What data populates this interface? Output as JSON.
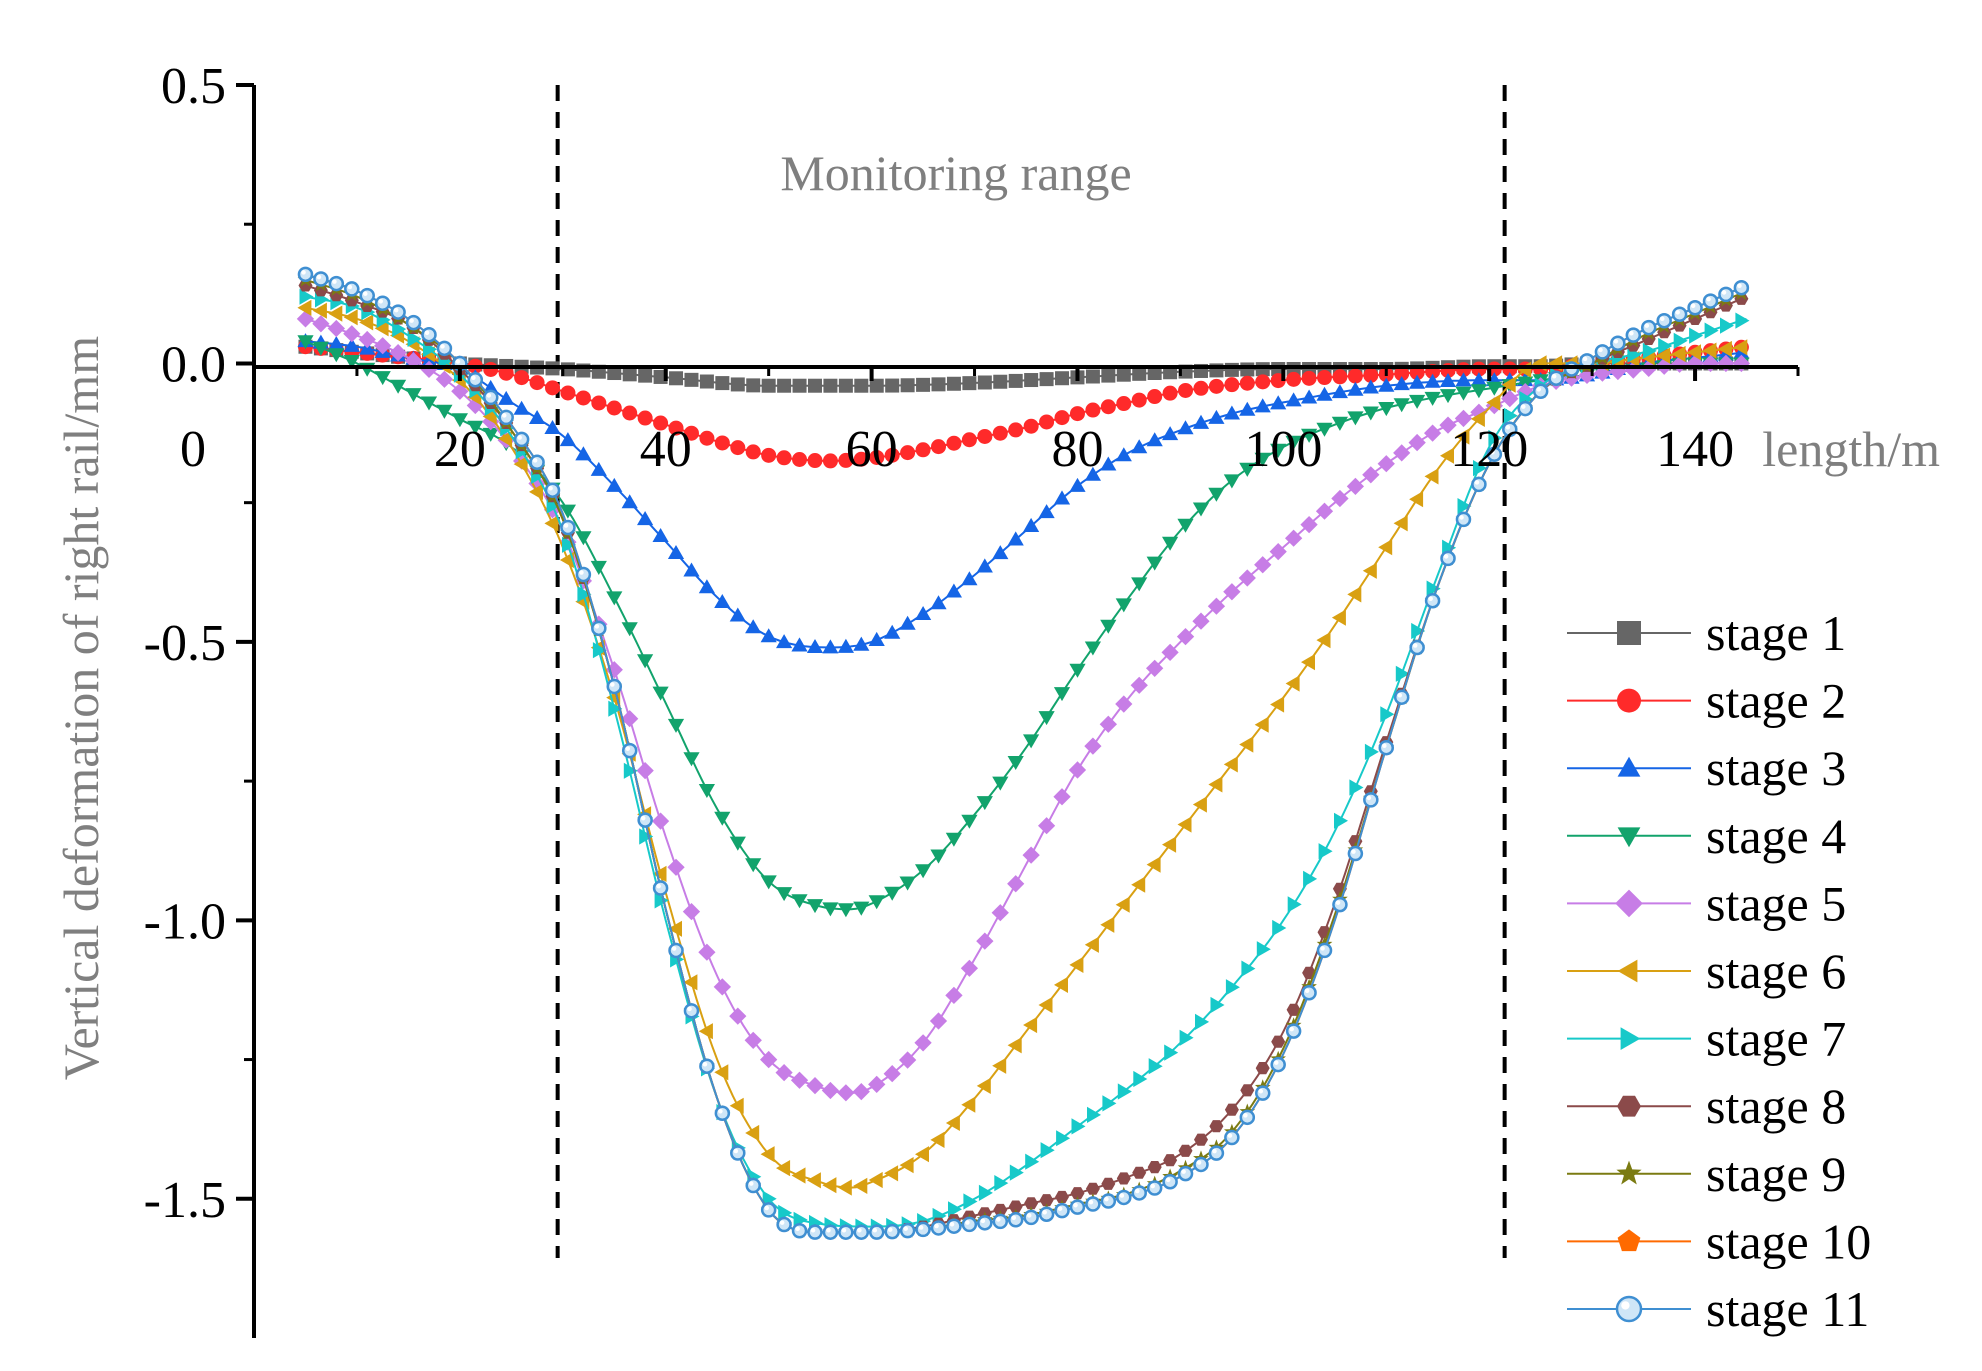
{
  "chart_data": {
    "type": "line",
    "title": "",
    "xlabel": "length/m",
    "ylabel": "Vertical deformation of right rail/mm",
    "xlim": [
      0,
      150
    ],
    "ylim": [
      -1.75,
      0.5
    ],
    "x_ticks": [
      {
        "value": 0,
        "label": "0"
      },
      {
        "value": 20,
        "label": "20"
      },
      {
        "value": 40,
        "label": "40"
      },
      {
        "value": 60,
        "label": "60"
      },
      {
        "value": 80,
        "label": "80"
      },
      {
        "value": 100,
        "label": "100"
      },
      {
        "value": 120,
        "label": "120"
      },
      {
        "value": 140,
        "label": "140"
      }
    ],
    "y_ticks": [
      {
        "value": 0.5,
        "label": "0.5"
      },
      {
        "value": 0.0,
        "label": "0.0"
      },
      {
        "value": -0.5,
        "label": "-0.5"
      },
      {
        "value": -1.0,
        "label": "-1.0"
      },
      {
        "value": -1.5,
        "label": "-1.5"
      }
    ],
    "grid": false,
    "legend_position": "bottom-right",
    "annotations": [
      {
        "text": "Monitoring range",
        "x": 69,
        "y": 0.34
      }
    ],
    "reference_lines": [
      {
        "orientation": "vertical",
        "x": 29.5,
        "style": "dashed"
      },
      {
        "orientation": "vertical",
        "x": 121.5,
        "style": "dashed"
      }
    ],
    "series": [
      {
        "name": "stage 1",
        "color": "#666666",
        "marker": "square",
        "x": [
          5,
          10,
          15,
          20,
          25,
          30,
          40,
          50,
          56,
          60,
          70,
          80,
          90,
          100,
          110,
          120,
          125,
          130,
          135,
          140,
          145
        ],
        "y": [
          0.03,
          0.02,
          0.01,
          0.0,
          -0.005,
          -0.01,
          -0.025,
          -0.04,
          -0.04,
          -0.04,
          -0.035,
          -0.025,
          -0.015,
          -0.01,
          -0.01,
          -0.005,
          -0.005,
          0.0,
          0.0,
          0.0,
          0.0
        ]
      },
      {
        "name": "stage 2",
        "color": "#ff2a2a",
        "marker": "circle",
        "x": [
          5,
          10,
          15,
          20,
          25,
          30,
          35,
          40,
          45,
          50,
          56,
          60,
          65,
          70,
          75,
          80,
          85,
          90,
          100,
          110,
          120,
          125,
          130,
          135,
          140,
          145
        ],
        "y": [
          0.03,
          0.02,
          0.01,
          0.0,
          -0.02,
          -0.05,
          -0.08,
          -0.11,
          -0.14,
          -0.165,
          -0.175,
          -0.17,
          -0.155,
          -0.135,
          -0.115,
          -0.09,
          -0.07,
          -0.05,
          -0.03,
          -0.02,
          -0.01,
          -0.01,
          0.0,
          0.01,
          0.02,
          0.03
        ]
      },
      {
        "name": "stage 3",
        "color": "#1565e6",
        "marker": "triangle-up",
        "x": [
          5,
          10,
          15,
          20,
          25,
          30,
          35,
          40,
          45,
          50,
          56,
          60,
          65,
          70,
          75,
          80,
          85,
          90,
          95,
          100,
          110,
          120,
          125,
          130,
          135,
          140,
          145
        ],
        "y": [
          0.04,
          0.03,
          0.01,
          -0.01,
          -0.07,
          -0.13,
          -0.22,
          -0.32,
          -0.42,
          -0.49,
          -0.51,
          -0.5,
          -0.45,
          -0.38,
          -0.3,
          -0.22,
          -0.16,
          -0.12,
          -0.09,
          -0.07,
          -0.04,
          -0.03,
          -0.03,
          -0.02,
          0.0,
          0.01,
          0.02
        ]
      },
      {
        "name": "stage 4",
        "color": "#12a36c",
        "marker": "triangle-down",
        "x": [
          5,
          10,
          15,
          20,
          25,
          30,
          35,
          40,
          45,
          50,
          55,
          58,
          60,
          65,
          70,
          75,
          80,
          85,
          90,
          95,
          100,
          105,
          110,
          115,
          120,
          125,
          130,
          135,
          140,
          145
        ],
        "y": [
          0.04,
          0.0,
          -0.05,
          -0.1,
          -0.15,
          -0.25,
          -0.42,
          -0.61,
          -0.8,
          -0.93,
          -0.975,
          -0.98,
          -0.97,
          -0.91,
          -0.81,
          -0.69,
          -0.55,
          -0.42,
          -0.3,
          -0.21,
          -0.15,
          -0.11,
          -0.08,
          -0.06,
          -0.045,
          -0.03,
          -0.02,
          -0.01,
          0.0,
          0.0
        ]
      },
      {
        "name": "stage 5",
        "color": "#c77de6",
        "marker": "diamond",
        "x": [
          5,
          10,
          15,
          20,
          25,
          30,
          35,
          40,
          45,
          50,
          55,
          58,
          60,
          65,
          70,
          75,
          80,
          85,
          90,
          95,
          100,
          105,
          110,
          115,
          120,
          125,
          130,
          135,
          140,
          145
        ],
        "y": [
          0.08,
          0.05,
          0.01,
          -0.05,
          -0.15,
          -0.3,
          -0.55,
          -0.85,
          -1.1,
          -1.25,
          -1.3,
          -1.31,
          -1.3,
          -1.22,
          -1.07,
          -0.9,
          -0.73,
          -0.6,
          -0.5,
          -0.41,
          -0.33,
          -0.25,
          -0.18,
          -0.12,
          -0.08,
          -0.04,
          -0.02,
          -0.01,
          0.0,
          0.0
        ]
      },
      {
        "name": "stage 6",
        "color": "#d9a012",
        "marker": "triangle-left",
        "x": [
          5,
          10,
          15,
          20,
          25,
          30,
          35,
          40,
          45,
          50,
          55,
          58,
          60,
          65,
          70,
          75,
          80,
          85,
          90,
          95,
          100,
          105,
          110,
          115,
          120,
          125,
          130,
          135,
          140,
          145
        ],
        "y": [
          0.1,
          0.08,
          0.04,
          -0.03,
          -0.15,
          -0.33,
          -0.6,
          -0.95,
          -1.25,
          -1.42,
          -1.47,
          -1.48,
          -1.47,
          -1.42,
          -1.32,
          -1.2,
          -1.08,
          -0.96,
          -0.84,
          -0.72,
          -0.6,
          -0.47,
          -0.33,
          -0.19,
          -0.08,
          0.0,
          0.0,
          0.01,
          0.02,
          0.03
        ]
      },
      {
        "name": "stage 7",
        "color": "#17c9c9",
        "marker": "triangle-right",
        "x": [
          5,
          10,
          15,
          20,
          25,
          30,
          35,
          40,
          45,
          50,
          55,
          60,
          65,
          70,
          75,
          80,
          85,
          90,
          95,
          100,
          105,
          110,
          115,
          120,
          125,
          130,
          135,
          140,
          145
        ],
        "y": [
          0.12,
          0.1,
          0.05,
          -0.02,
          -0.13,
          -0.3,
          -0.62,
          -1.0,
          -1.32,
          -1.5,
          -1.545,
          -1.55,
          -1.54,
          -1.5,
          -1.44,
          -1.37,
          -1.3,
          -1.22,
          -1.12,
          -1.0,
          -0.84,
          -0.63,
          -0.38,
          -0.15,
          -0.04,
          0.0,
          0.02,
          0.05,
          0.08
        ]
      },
      {
        "name": "stage 8",
        "color": "#8b4a4a",
        "marker": "hexagon",
        "x": [
          5,
          10,
          15,
          20,
          25,
          30,
          35,
          40,
          45,
          50,
          55,
          60,
          65,
          70,
          75,
          80,
          85,
          90,
          95,
          100,
          105,
          110,
          115,
          120,
          125,
          130,
          135,
          140,
          145
        ],
        "y": [
          0.14,
          0.11,
          0.07,
          -0.01,
          -0.12,
          -0.28,
          -0.58,
          -0.98,
          -1.32,
          -1.52,
          -1.56,
          -1.56,
          -1.55,
          -1.53,
          -1.51,
          -1.49,
          -1.46,
          -1.42,
          -1.34,
          -1.2,
          -0.97,
          -0.68,
          -0.4,
          -0.18,
          -0.05,
          0.0,
          0.04,
          0.08,
          0.12
        ]
      },
      {
        "name": "stage 9",
        "color": "#7b7b12",
        "marker": "star",
        "x": [
          5,
          10,
          15,
          20,
          25,
          30,
          35,
          40,
          45,
          50,
          55,
          60,
          65,
          70,
          75,
          80,
          85,
          90,
          95,
          100,
          105,
          110,
          115,
          120,
          125,
          130,
          135,
          140,
          145
        ],
        "y": [
          0.15,
          0.12,
          0.07,
          0.0,
          -0.12,
          -0.28,
          -0.58,
          -0.98,
          -1.32,
          -1.52,
          -1.56,
          -1.56,
          -1.555,
          -1.54,
          -1.53,
          -1.51,
          -1.49,
          -1.45,
          -1.38,
          -1.23,
          -0.99,
          -0.69,
          -0.4,
          -0.18,
          -0.05,
          0.0,
          0.05,
          0.09,
          0.13
        ]
      },
      {
        "name": "stage 10",
        "color": "#ff6a00",
        "marker": "pentagon",
        "x": [
          5,
          10,
          15,
          20,
          25,
          30,
          35,
          40,
          45,
          50,
          55,
          60,
          65,
          70,
          75,
          80,
          85,
          90,
          95,
          100,
          105,
          110,
          115,
          120,
          125,
          130,
          135,
          140,
          145
        ],
        "y": [
          0.16,
          0.13,
          0.08,
          0.0,
          -0.11,
          -0.27,
          -0.58,
          -0.98,
          -1.32,
          -1.52,
          -1.56,
          -1.56,
          -1.555,
          -1.545,
          -1.535,
          -1.515,
          -1.495,
          -1.46,
          -1.39,
          -1.24,
          -1.0,
          -0.69,
          -0.4,
          -0.18,
          -0.05,
          0.01,
          0.06,
          0.1,
          0.14
        ]
      },
      {
        "name": "stage 11",
        "color": "#3f8fd2",
        "marker": "sphere",
        "x": [
          5,
          10,
          15,
          20,
          25,
          30,
          35,
          40,
          45,
          50,
          55,
          60,
          65,
          70,
          75,
          80,
          85,
          90,
          95,
          100,
          105,
          110,
          115,
          120,
          125,
          130,
          135,
          140,
          145
        ],
        "y": [
          0.16,
          0.13,
          0.08,
          0.0,
          -0.11,
          -0.27,
          -0.58,
          -0.98,
          -1.32,
          -1.52,
          -1.56,
          -1.56,
          -1.555,
          -1.545,
          -1.535,
          -1.515,
          -1.495,
          -1.46,
          -1.39,
          -1.24,
          -1.0,
          -0.69,
          -0.4,
          -0.18,
          -0.05,
          0.01,
          0.06,
          0.1,
          0.14
        ]
      }
    ]
  }
}
